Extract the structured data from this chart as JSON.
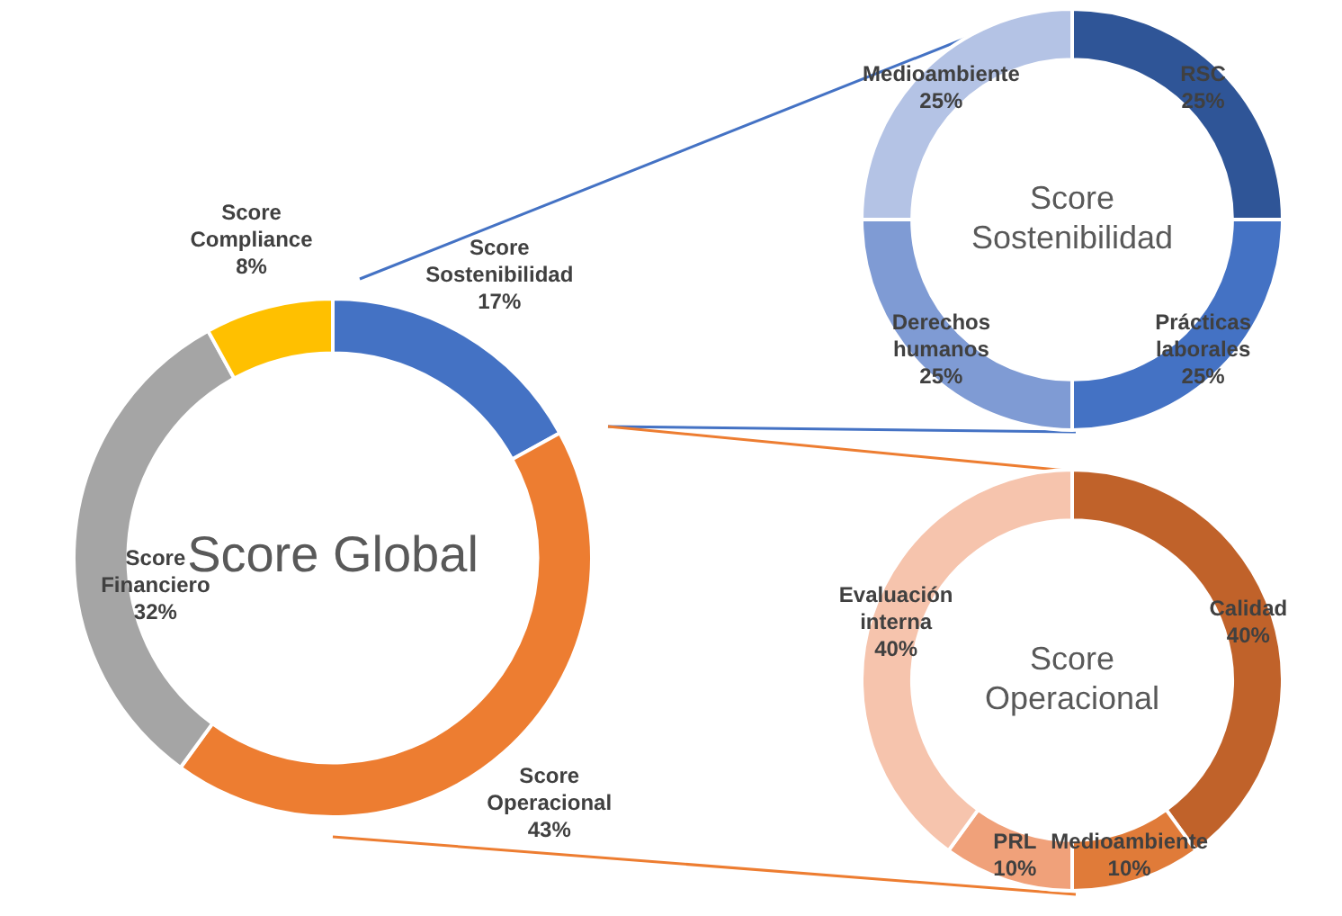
{
  "chart_data": [
    {
      "type": "donut",
      "title": "Score Global",
      "categories": [
        "Score Sostenibilidad",
        "Score Operacional",
        "Score Financiero",
        "Score Compliance"
      ],
      "values": [
        17,
        43,
        32,
        8
      ],
      "value_labels": [
        "17%",
        "43%",
        "32%",
        "8%"
      ],
      "colors": [
        "#4472c4",
        "#ed7d31",
        "#a5a5a5",
        "#ffc000"
      ]
    },
    {
      "type": "donut",
      "title": "Score Sostenibilidad",
      "categories": [
        "RSC",
        "Prácticas laborales",
        "Derechos humanos",
        "Medioambiente"
      ],
      "values": [
        25,
        25,
        25,
        25
      ],
      "value_labels": [
        "25%",
        "25%",
        "25%",
        "25%"
      ],
      "colors": [
        "#2f5597",
        "#4472c4",
        "#7f9bd4",
        "#b4c3e5"
      ]
    },
    {
      "type": "donut",
      "title": "Score Operacional",
      "categories": [
        "Calidad",
        "Medioambiente",
        "PRL",
        "Evaluación interna"
      ],
      "values": [
        40,
        10,
        10,
        40
      ],
      "value_labels": [
        "40%",
        "10%",
        "10%",
        "40%"
      ],
      "colors": [
        "#c0622a",
        "#e07b39",
        "#f0a17a",
        "#f6c4ad"
      ]
    }
  ]
}
